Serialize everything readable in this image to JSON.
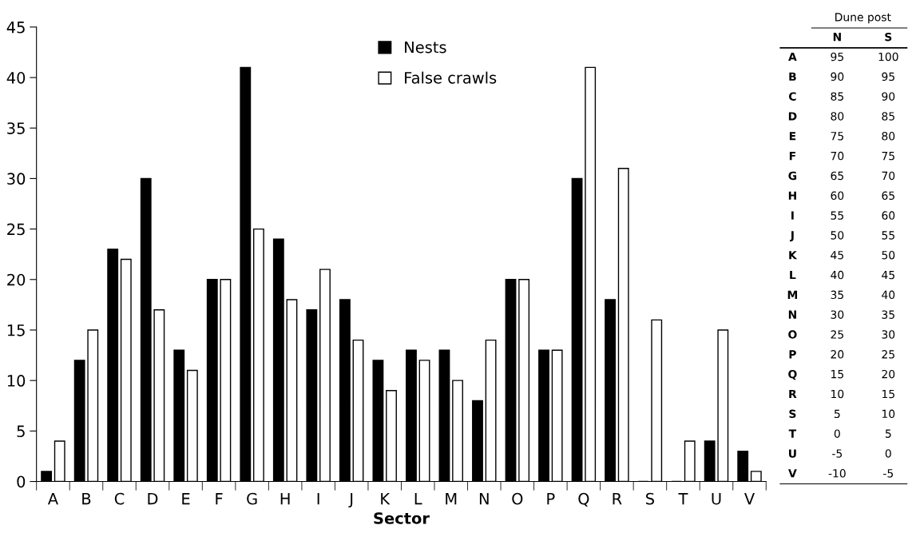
{
  "chart_data": [
    {
      "type": "bar",
      "xlabel": "Sector",
      "categories": [
        "A",
        "B",
        "C",
        "D",
        "E",
        "F",
        "G",
        "H",
        "I",
        "J",
        "K",
        "L",
        "M",
        "N",
        "O",
        "P",
        "Q",
        "R",
        "S",
        "T",
        "U",
        "V"
      ],
      "series": [
        {
          "name": "Nests",
          "color": "#000000",
          "values": [
            1,
            12,
            23,
            30,
            13,
            20,
            41,
            24,
            17,
            18,
            12,
            13,
            13,
            8,
            20,
            13,
            30,
            18,
            0,
            0,
            4,
            3
          ]
        },
        {
          "name": "False crawls",
          "color": "#ffffff",
          "values": [
            4,
            15,
            22,
            17,
            11,
            20,
            25,
            18,
            21,
            14,
            9,
            12,
            10,
            14,
            20,
            13,
            41,
            31,
            16,
            4,
            15,
            1
          ]
        }
      ],
      "ylim": [
        0,
        45
      ],
      "yticks": [
        0,
        5,
        10,
        15,
        20,
        25,
        30,
        35,
        40,
        45
      ],
      "grid": false,
      "legend": "top"
    },
    {
      "type": "other",
      "title": "Dune post",
      "categories": [
        "A",
        "B",
        "C",
        "D",
        "E",
        "F",
        "G",
        "H",
        "I",
        "J",
        "K",
        "L",
        "M",
        "N",
        "O",
        "P",
        "Q",
        "R",
        "S",
        "T",
        "U",
        "V"
      ],
      "series": [
        {
          "name": "N",
          "values": [
            95,
            90,
            85,
            80,
            75,
            70,
            65,
            60,
            55,
            50,
            45,
            40,
            35,
            30,
            25,
            20,
            15,
            10,
            5,
            0,
            -5,
            -10
          ]
        },
        {
          "name": "S",
          "values": [
            100,
            95,
            90,
            85,
            80,
            75,
            70,
            65,
            60,
            55,
            50,
            45,
            40,
            35,
            30,
            25,
            20,
            15,
            10,
            5,
            0,
            -5
          ]
        }
      ],
      "data_labels": true
    }
  ]
}
